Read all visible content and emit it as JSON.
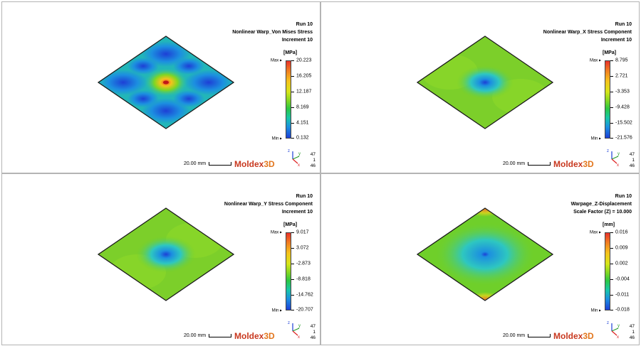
{
  "panels": [
    {
      "run": "Run 10",
      "title": "Nonlinear Warp_Von Mises Stress",
      "subtitle": "Increment 10",
      "unit": "[MPa]",
      "max_label": "Max",
      "min_label": "Min",
      "legend_values": [
        "20.223",
        "16.205",
        "12.187",
        "8.169",
        "4.151",
        "0.132"
      ],
      "scale_text": "20.00 mm",
      "logo_a": "Moldex",
      "logo_b": "3D",
      "nodes": [
        "47",
        "1",
        "46"
      ],
      "pattern": "vonmises"
    },
    {
      "run": "Run 10",
      "title": "Nonlinear Warp_X Stress Component",
      "subtitle": "Increment 10",
      "unit": "[MPa]",
      "max_label": "Max",
      "min_label": "Min",
      "legend_values": [
        "8.795",
        "2.721",
        "-3.353",
        "-9.428",
        "-15.502",
        "-21.576"
      ],
      "scale_text": "20.00 mm",
      "logo_a": "Moldex",
      "logo_b": "3D",
      "nodes": [
        "47",
        "1",
        "46"
      ],
      "pattern": "center"
    },
    {
      "run": "Run 10",
      "title": "Nonlinear Warp_Y Stress Component",
      "subtitle": "Increment 10",
      "unit": "[MPa]",
      "max_label": "Max",
      "min_label": "Min",
      "legend_values": [
        "9.017",
        "3.072",
        "-2.873",
        "-8.818",
        "-14.762",
        "-20.707"
      ],
      "scale_text": "20.00 mm",
      "logo_a": "Moldex",
      "logo_b": "3D",
      "nodes": [
        "47",
        "1",
        "46"
      ],
      "pattern": "center"
    },
    {
      "run": "Run 10",
      "title": "Warpage_Z-Displacement",
      "subtitle": "Scale Factor (Z) = 10.000",
      "unit": "[mm]",
      "max_label": "Max",
      "min_label": "Min",
      "legend_values": [
        "0.016",
        "0.009",
        "0.002",
        "-0.004",
        "-0.011",
        "-0.018"
      ],
      "scale_text": "20.00 mm",
      "logo_a": "Moldex",
      "logo_b": "3D",
      "nodes": [
        "47",
        "1",
        "46"
      ],
      "pattern": "warp"
    }
  ],
  "triad_labels": {
    "z": "z",
    "y": "y",
    "x": "x"
  },
  "colors": {
    "plate_green": "#7ed321",
    "plate_blue": "#1f7ad6",
    "plate_cyan": "#2ec7c0",
    "plate_red": "#e8322a",
    "logo_red": "#c8381f",
    "logo_orange": "#e2761d"
  }
}
